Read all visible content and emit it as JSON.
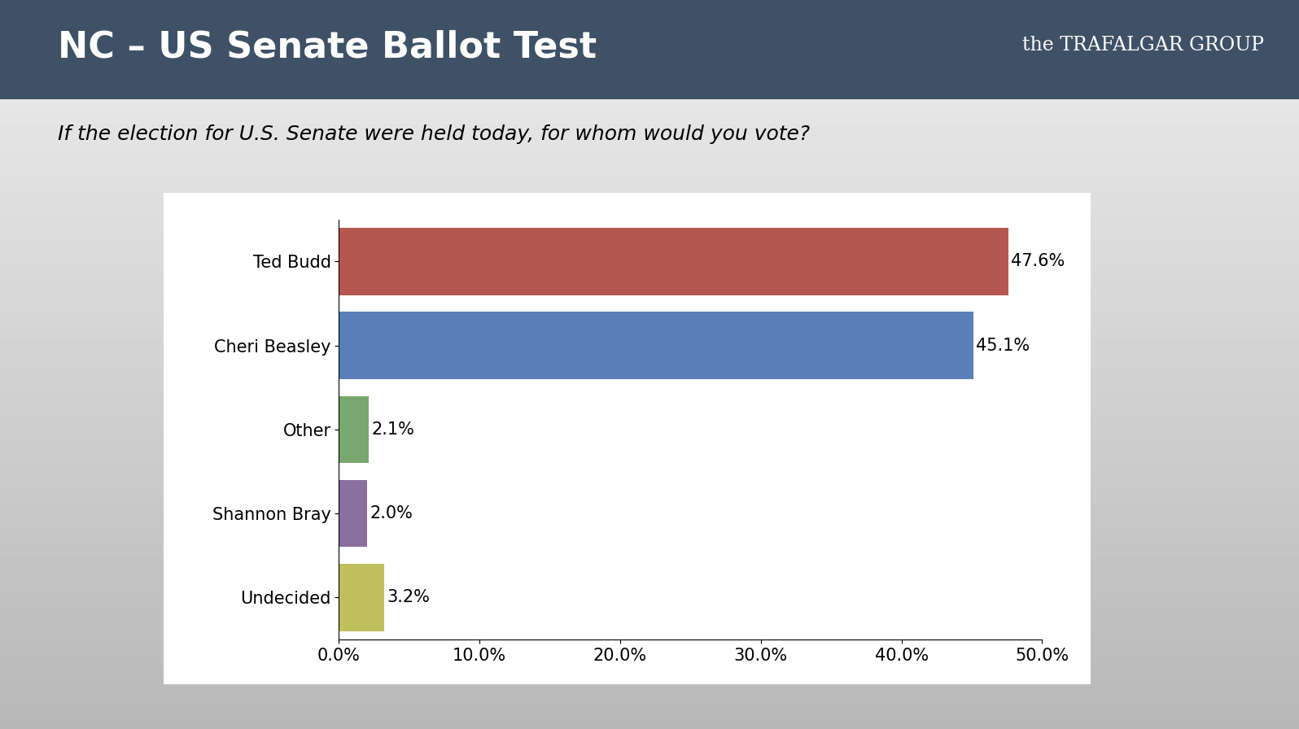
{
  "chart_data": {
    "type": "bar",
    "orientation": "horizontal",
    "title": "NC – US Senate Ballot Test",
    "subtitle": "If the election for U.S. Senate were held today, for whom would you vote?",
    "annotations": [
      "the TRAFALGAR GROUP"
    ],
    "categories": [
      "Ted Budd",
      "Cheri Beasley",
      "Other",
      "Shannon Bray",
      "Undecided"
    ],
    "values": [
      47.6,
      45.1,
      2.1,
      2.0,
      3.2
    ],
    "value_labels": [
      "47.6%",
      "45.1%",
      "2.1%",
      "2.0%",
      "3.2%"
    ],
    "colors": [
      "#b55750",
      "#5a7fb8",
      "#78a86f",
      "#8970a1",
      "#bfc05d"
    ],
    "data_labels": true,
    "grid": false,
    "xlim": [
      0,
      50
    ],
    "xticks": [
      {
        "value": 0,
        "label": "0.0%"
      },
      {
        "value": 10,
        "label": "10.0%"
      },
      {
        "value": 20,
        "label": "20.0%"
      },
      {
        "value": 30,
        "label": "30.0%"
      },
      {
        "value": 40,
        "label": "40.0%"
      },
      {
        "value": 50,
        "label": "50.0%"
      }
    ]
  }
}
